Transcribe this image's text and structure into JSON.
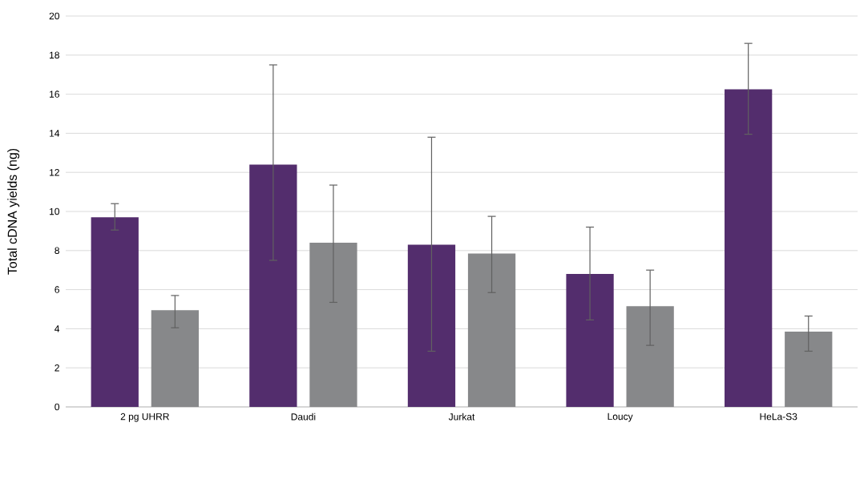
{
  "chart_data": {
    "type": "bar",
    "ylabel": "Total cDNA yields (ng)",
    "categories": [
      "2 pg UHRR",
      "Daudi",
      "Jurkat",
      "Loucy",
      "HeLa-S3"
    ],
    "series": [
      {
        "color": "#532d6d",
        "values": [
          9.7,
          12.4,
          8.3,
          6.8,
          16.25
        ],
        "errors": [
          [
            9.05,
            10.4
          ],
          [
            7.5,
            17.5
          ],
          [
            2.85,
            13.8
          ],
          [
            4.45,
            9.2
          ],
          [
            13.95,
            18.6
          ]
        ]
      },
      {
        "color": "#87888a",
        "values": [
          4.95,
          8.4,
          7.85,
          5.15,
          3.85
        ],
        "errors": [
          [
            4.05,
            5.7
          ],
          [
            5.35,
            11.35
          ],
          [
            5.85,
            9.75
          ],
          [
            3.15,
            7.0
          ],
          [
            2.85,
            4.65
          ]
        ]
      }
    ],
    "ylim": [
      0,
      20
    ],
    "yticks": [
      0,
      2,
      4,
      6,
      8,
      10,
      12,
      14,
      16,
      18,
      20
    ],
    "grid": "y"
  }
}
